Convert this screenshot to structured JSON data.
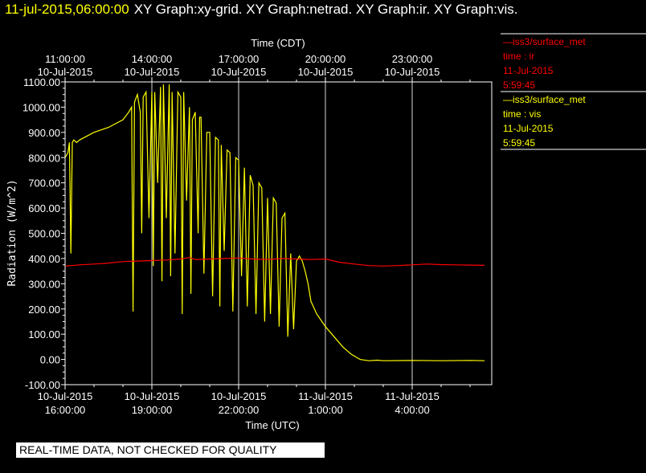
{
  "header": {
    "timestamp": "11-jul-2015,06:00:00",
    "graphs": "XY Graph:xy-grid.  XY Graph:netrad.  XY Graph:ir.  XY Graph:vis."
  },
  "legend": [
    {
      "line1": "—iss3/surface_met",
      "line2": "time : ir",
      "line3": "11-Jul-2015",
      "line4": "5:59:45",
      "color": "#ff0000"
    },
    {
      "line1": "—iss3/surface_met",
      "line2": "time : vis",
      "line3": "11-Jul-2015",
      "line4": "5:59:45",
      "color": "#ffff00"
    }
  ],
  "disclaimer": "REAL-TIME DATA, NOT CHECKED FOR QUALITY",
  "chart_data": {
    "type": "line",
    "title": "",
    "xlabel": "Time (UTC)",
    "x2label": "Time (CDT)",
    "ylabel": "Radiation (W/m^2)",
    "ylim": [
      -100,
      1100
    ],
    "yticks": [
      "1100.00",
      "1000.00",
      "900.00",
      "800.00",
      "700.00",
      "600.00",
      "500.00",
      "400.00",
      "300.00",
      "200.00",
      "100.00",
      "0.00",
      "-100.00"
    ],
    "xlim_hours": [
      16,
      30.75
    ],
    "xticks_utc": [
      {
        "h": 16,
        "date": "10-Jul-2015",
        "time": "16:00:00"
      },
      {
        "h": 19,
        "date": "10-Jul-2015",
        "time": "19:00:00"
      },
      {
        "h": 22,
        "date": "10-Jul-2015",
        "time": "22:00:00"
      },
      {
        "h": 25,
        "date": "11-Jul-2015",
        "time": "1:00:00"
      },
      {
        "h": 28,
        "date": "11-Jul-2015",
        "time": "4:00:00"
      }
    ],
    "xticks_cdt": [
      {
        "h": 16,
        "time": "11:00:00",
        "date": "10-Jul-2015"
      },
      {
        "h": 19,
        "time": "14:00:00",
        "date": "10-Jul-2015"
      },
      {
        "h": 22,
        "time": "17:00:00",
        "date": "10-Jul-2015"
      },
      {
        "h": 25,
        "time": "20:00:00",
        "date": "10-Jul-2015"
      },
      {
        "h": 28,
        "time": "23:00:00",
        "date": "10-Jul-2015"
      }
    ],
    "grid": true,
    "series": [
      {
        "name": "iss3/surface_met time : ir",
        "color": "#ff0000",
        "x": [
          16.0,
          16.5,
          17.0,
          17.5,
          18.0,
          18.5,
          19.0,
          19.5,
          20.0,
          20.3,
          20.5,
          21.0,
          21.5,
          22.0,
          22.5,
          23.0,
          23.5,
          24.0,
          24.5,
          25.0,
          25.5,
          26.0,
          26.5,
          27.0,
          27.5,
          28.0,
          28.5,
          29.0,
          29.5,
          30.0,
          30.5
        ],
        "y": [
          370,
          375,
          378,
          382,
          388,
          390,
          392,
          394,
          398,
          404,
          396,
          398,
          400,
          402,
          398,
          396,
          400,
          398,
          396,
          398,
          385,
          378,
          372,
          370,
          372,
          375,
          378,
          376,
          375,
          374,
          373
        ]
      },
      {
        "name": "iss3/surface_met time : vis",
        "color": "#ffff00",
        "x": [
          16.0,
          16.1,
          16.15,
          16.2,
          16.25,
          16.3,
          16.4,
          16.5,
          17.0,
          17.5,
          18.0,
          18.2,
          18.3,
          18.35,
          18.4,
          18.5,
          18.6,
          18.65,
          18.7,
          18.8,
          18.9,
          19.0,
          19.05,
          19.1,
          19.2,
          19.3,
          19.35,
          19.4,
          19.5,
          19.6,
          19.65,
          19.7,
          19.8,
          19.9,
          20.0,
          20.05,
          20.1,
          20.2,
          20.3,
          20.35,
          20.4,
          20.5,
          20.6,
          20.65,
          20.7,
          20.8,
          20.9,
          21.0,
          21.1,
          21.2,
          21.3,
          21.35,
          21.4,
          21.5,
          21.6,
          21.7,
          21.8,
          21.9,
          22.0,
          22.1,
          22.2,
          22.3,
          22.4,
          22.5,
          22.6,
          22.7,
          22.8,
          22.9,
          23.0,
          23.1,
          23.2,
          23.3,
          23.4,
          23.5,
          23.6,
          23.7,
          23.8,
          23.9,
          24.0,
          24.1,
          24.2,
          24.3,
          24.4,
          24.5,
          24.7,
          25.0,
          25.3,
          25.6,
          25.9,
          26.2,
          26.5,
          26.8,
          27.0,
          28.0,
          29.0,
          30.0,
          30.5
        ],
        "y": [
          800,
          820,
          860,
          420,
          860,
          870,
          860,
          870,
          900,
          920,
          950,
          980,
          1000,
          190,
          1020,
          1050,
          980,
          500,
          1040,
          1060,
          560,
          1060,
          370,
          1060,
          700,
          1080,
          310,
          1090,
          560,
          1090,
          330,
          1060,
          420,
          1060,
          1040,
          180,
          1060,
          630,
          1000,
          260,
          950,
          980,
          500,
          960,
          960,
          340,
          900,
          900,
          250,
          880,
          870,
          210,
          850,
          430,
          830,
          820,
          190,
          800,
          790,
          330,
          760,
          210,
          730,
          690,
          180,
          700,
          680,
          150,
          640,
          180,
          640,
          620,
          130,
          560,
          580,
          90,
          420,
          120,
          390,
          410,
          390,
          350,
          300,
          230,
          180,
          130,
          90,
          50,
          20,
          0,
          -5,
          -3,
          -5,
          -4,
          -5,
          -4,
          -5
        ]
      }
    ]
  }
}
